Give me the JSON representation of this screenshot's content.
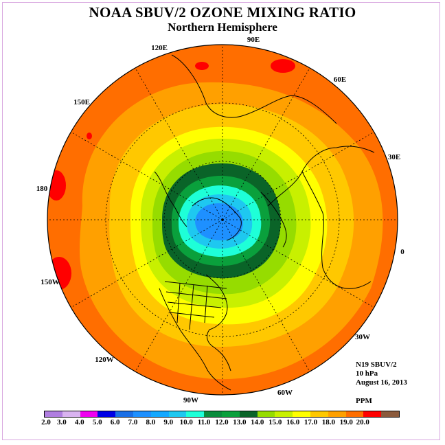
{
  "title": "NOAA SBUV/2 OZONE MIXING RATIO",
  "subtitle": "Northern Hemisphere",
  "info": {
    "satellite": "N19 SBUV/2",
    "level": "10 hPa",
    "date": "August 16, 2013",
    "units": "PPM"
  },
  "longitude_labels": [
    "0",
    "30E",
    "60E",
    "90E",
    "120E",
    "150E",
    "180",
    "150W",
    "120W",
    "90W",
    "60W",
    "30W"
  ],
  "colorbar": {
    "ticks": [
      "2.0",
      "3.0",
      "4.0",
      "5.0",
      "6.0",
      "7.0",
      "8.0",
      "9.0",
      "10.0",
      "11.0",
      "12.0",
      "13.0",
      "14.0",
      "15.0",
      "16.0",
      "17.0",
      "18.0",
      "19.0",
      "20.0"
    ],
    "colors": [
      "#b07ee0",
      "#d9b3f0",
      "#f000f0",
      "#0000e6",
      "#1a6fe6",
      "#1e90ff",
      "#14a8ff",
      "#1ec8f0",
      "#1effd8",
      "#0a8c3c",
      "#0aa03c",
      "#0a6428",
      "#96dc00",
      "#c8f000",
      "#ffff00",
      "#ffc800",
      "#ffa000",
      "#ff6e00",
      "#ff0000",
      "#8b5a3c"
    ]
  },
  "map_colors": {
    "orange_dark": "#ff6e00",
    "orange": "#ffa000",
    "amber": "#ffc800",
    "yellow": "#ffff00",
    "yellow_green": "#c8f000",
    "lime": "#96dc00",
    "green": "#0aa03c",
    "dark_green": "#0a6428",
    "cyan": "#1effd8",
    "light_blue": "#1ec8f0",
    "blue": "#1e90ff",
    "red": "#ff0000"
  }
}
